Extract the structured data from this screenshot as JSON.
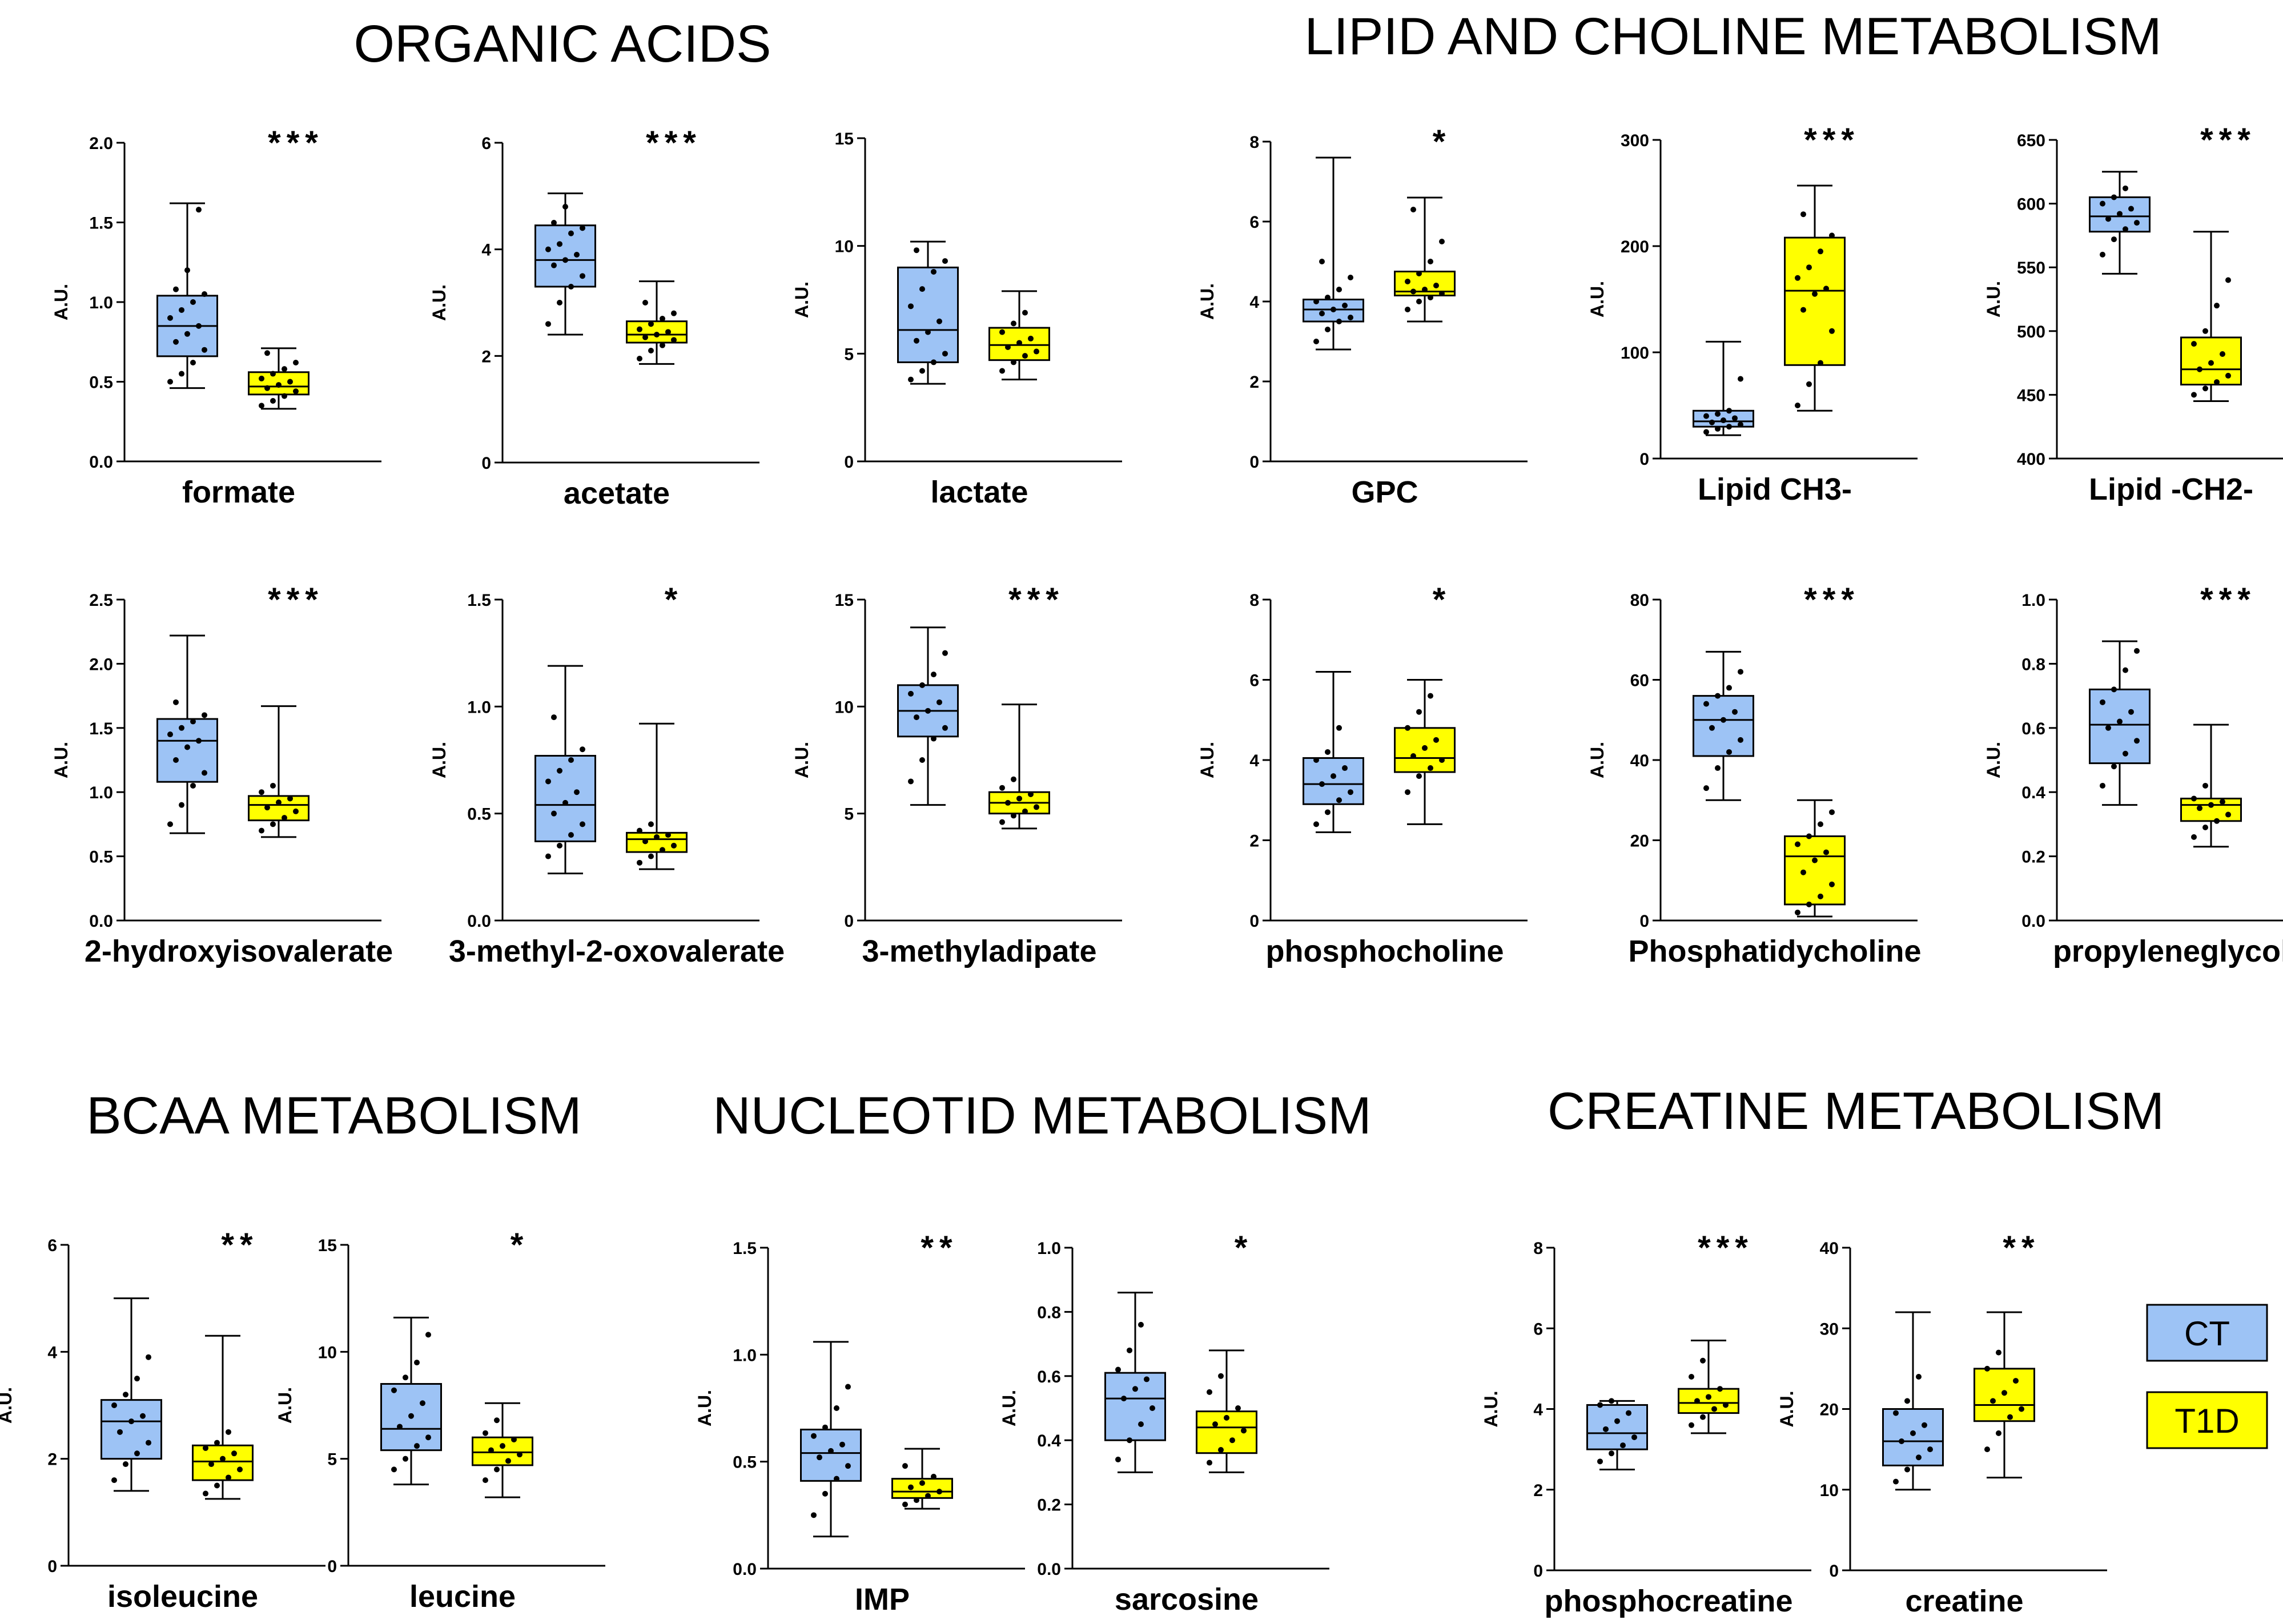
{
  "section_titles": [
    "ORGANIC ACIDS",
    "LIPID AND CHOLINE METABOLISM",
    "BCAA METABOLISM",
    "NUCLEOTID METABOLISM",
    "CREATINE METABOLISM"
  ],
  "legend": [
    {
      "label": "CT",
      "color": "#9DC3F5"
    },
    {
      "label": "T1D",
      "color": "#FFFF00"
    }
  ],
  "colors": {
    "CT": "#9DC3F5",
    "T1D": "#FFFF00",
    "stroke": "#000000"
  },
  "chart_data": [
    {
      "type": "box",
      "title": "formate",
      "ylabel": "A.U.",
      "ylim": [
        0,
        2.0
      ],
      "yticks": [
        "0.0",
        "0.5",
        "1.0",
        "1.5",
        "2.0"
      ],
      "significance": "***",
      "series": [
        {
          "name": "CT",
          "min": 0.46,
          "q1": 0.66,
          "median": 0.85,
          "q3": 1.04,
          "max": 1.62,
          "points": [
            0.5,
            0.55,
            0.62,
            0.7,
            0.75,
            0.8,
            0.85,
            0.9,
            0.95,
            1.0,
            1.05,
            1.08,
            1.2,
            1.58
          ]
        },
        {
          "name": "T1D",
          "min": 0.33,
          "q1": 0.42,
          "median": 0.47,
          "q3": 0.56,
          "max": 0.71,
          "points": [
            0.35,
            0.38,
            0.41,
            0.44,
            0.46,
            0.48,
            0.5,
            0.52,
            0.55,
            0.58,
            0.62,
            0.68
          ]
        }
      ]
    },
    {
      "type": "box",
      "title": "acetate",
      "ylabel": "A.U.",
      "ylim": [
        0,
        6
      ],
      "yticks": [
        "0",
        "2",
        "4",
        "6"
      ],
      "significance": "***",
      "series": [
        {
          "name": "CT",
          "min": 2.4,
          "q1": 3.3,
          "median": 3.8,
          "q3": 4.45,
          "max": 5.05,
          "points": [
            2.6,
            3.0,
            3.3,
            3.5,
            3.7,
            3.8,
            3.9,
            4.0,
            4.1,
            4.3,
            4.4,
            4.5,
            4.8
          ]
        },
        {
          "name": "T1D",
          "min": 1.85,
          "q1": 2.25,
          "median": 2.4,
          "q3": 2.65,
          "max": 3.4,
          "points": [
            1.95,
            2.1,
            2.2,
            2.3,
            2.35,
            2.4,
            2.45,
            2.5,
            2.6,
            2.7,
            2.8,
            3.0
          ]
        }
      ]
    },
    {
      "type": "box",
      "title": "lactate",
      "ylabel": "A.U.",
      "ylim": [
        0,
        15
      ],
      "yticks": [
        "0",
        "5",
        "10",
        "15"
      ],
      "significance": "",
      "series": [
        {
          "name": "CT",
          "min": 3.6,
          "q1": 4.6,
          "median": 6.1,
          "q3": 9.0,
          "max": 10.2,
          "points": [
            3.8,
            4.2,
            4.6,
            5.0,
            5.6,
            6.0,
            6.5,
            7.2,
            8.0,
            8.8,
            9.3,
            9.8
          ]
        },
        {
          "name": "T1D",
          "min": 3.8,
          "q1": 4.7,
          "median": 5.4,
          "q3": 6.2,
          "max": 7.9,
          "points": [
            4.2,
            4.6,
            4.9,
            5.1,
            5.3,
            5.5,
            5.7,
            6.0,
            6.4,
            6.9
          ]
        }
      ]
    },
    {
      "type": "box",
      "title": "GPC",
      "ylabel": "A.U.",
      "ylim": [
        0,
        8
      ],
      "yticks": [
        "0",
        "2",
        "4",
        "6",
        "8"
      ],
      "significance": "*",
      "series": [
        {
          "name": "CT",
          "min": 2.8,
          "q1": 3.5,
          "median": 3.8,
          "q3": 4.05,
          "max": 7.6,
          "points": [
            3.0,
            3.3,
            3.5,
            3.6,
            3.7,
            3.8,
            3.9,
            4.0,
            4.1,
            4.3,
            4.6,
            5.0
          ]
        },
        {
          "name": "T1D",
          "min": 3.5,
          "q1": 4.15,
          "median": 4.25,
          "q3": 4.75,
          "max": 6.6,
          "points": [
            3.8,
            4.0,
            4.1,
            4.2,
            4.25,
            4.3,
            4.4,
            4.5,
            4.7,
            5.0,
            5.5,
            6.3
          ]
        }
      ]
    },
    {
      "type": "box",
      "title": "Lipid CH3-",
      "ylabel": "A.U.",
      "ylim": [
        0,
        300
      ],
      "yticks": [
        "0",
        "100",
        "200",
        "300"
      ],
      "significance": "***",
      "series": [
        {
          "name": "CT",
          "min": 22,
          "q1": 30,
          "median": 35,
          "q3": 45,
          "max": 110,
          "points": [
            25,
            28,
            30,
            32,
            34,
            36,
            38,
            40,
            42,
            45,
            75
          ]
        },
        {
          "name": "T1D",
          "min": 45,
          "q1": 88,
          "median": 158,
          "q3": 208,
          "max": 257,
          "points": [
            50,
            70,
            90,
            120,
            140,
            155,
            160,
            170,
            180,
            195,
            210,
            230
          ]
        }
      ]
    },
    {
      "type": "box",
      "title": "Lipid -CH2-",
      "ylabel": "A.U.",
      "ylim": [
        400,
        650
      ],
      "yticks": [
        "400",
        "450",
        "500",
        "550",
        "600",
        "650"
      ],
      "significance": "***",
      "series": [
        {
          "name": "CT",
          "min": 545,
          "q1": 578,
          "median": 590,
          "q3": 605,
          "max": 625,
          "points": [
            560,
            572,
            580,
            585,
            588,
            592,
            596,
            600,
            605,
            612
          ]
        },
        {
          "name": "T1D",
          "min": 445,
          "q1": 458,
          "median": 470,
          "q3": 495,
          "max": 578,
          "points": [
            450,
            455,
            460,
            465,
            470,
            475,
            482,
            490,
            500,
            520,
            540
          ]
        }
      ]
    },
    {
      "type": "box",
      "title": "2-hydroxyisovalerate",
      "ylabel": "A.U.",
      "ylim": [
        0,
        2.5
      ],
      "yticks": [
        "0.0",
        "0.5",
        "1.0",
        "1.5",
        "2.0",
        "2.5"
      ],
      "significance": "***",
      "series": [
        {
          "name": "CT",
          "min": 0.68,
          "q1": 1.08,
          "median": 1.4,
          "q3": 1.57,
          "max": 2.22,
          "points": [
            0.75,
            0.9,
            1.05,
            1.15,
            1.25,
            1.35,
            1.4,
            1.45,
            1.5,
            1.55,
            1.6,
            1.7
          ]
        },
        {
          "name": "T1D",
          "min": 0.65,
          "q1": 0.78,
          "median": 0.9,
          "q3": 0.97,
          "max": 1.67,
          "points": [
            0.7,
            0.75,
            0.8,
            0.85,
            0.88,
            0.92,
            0.95,
            1.0,
            1.05
          ]
        }
      ]
    },
    {
      "type": "box",
      "title": "3-methyl-2-oxovalerate",
      "ylabel": "A.U.",
      "ylim": [
        0,
        1.5
      ],
      "yticks": [
        "0.0",
        "0.5",
        "1.0",
        "1.5"
      ],
      "significance": "*",
      "series": [
        {
          "name": "CT",
          "min": 0.22,
          "q1": 0.37,
          "median": 0.54,
          "q3": 0.77,
          "max": 1.19,
          "points": [
            0.3,
            0.35,
            0.4,
            0.45,
            0.5,
            0.55,
            0.6,
            0.65,
            0.7,
            0.75,
            0.8,
            0.95
          ]
        },
        {
          "name": "T1D",
          "min": 0.24,
          "q1": 0.32,
          "median": 0.38,
          "q3": 0.41,
          "max": 0.92,
          "points": [
            0.27,
            0.3,
            0.33,
            0.35,
            0.37,
            0.39,
            0.4,
            0.42,
            0.45
          ]
        }
      ]
    },
    {
      "type": "box",
      "title": "3-methyladipate",
      "ylabel": "A.U.",
      "ylim": [
        0,
        15
      ],
      "yticks": [
        "0",
        "5",
        "10",
        "15"
      ],
      "significance": "***",
      "series": [
        {
          "name": "CT",
          "min": 5.4,
          "q1": 8.6,
          "median": 9.8,
          "q3": 11.0,
          "max": 13.7,
          "points": [
            6.5,
            7.5,
            8.5,
            9.0,
            9.5,
            9.8,
            10.2,
            10.6,
            11.0,
            11.5,
            12.5
          ]
        },
        {
          "name": "T1D",
          "min": 4.3,
          "q1": 5.0,
          "median": 5.5,
          "q3": 6.0,
          "max": 10.1,
          "points": [
            4.6,
            4.9,
            5.1,
            5.3,
            5.5,
            5.7,
            5.9,
            6.2,
            6.6
          ]
        }
      ]
    },
    {
      "type": "box",
      "title": "phosphocholine",
      "ylabel": "A.U.",
      "ylim": [
        0,
        8
      ],
      "yticks": [
        "0",
        "2",
        "4",
        "6",
        "8"
      ],
      "significance": "*",
      "series": [
        {
          "name": "CT",
          "min": 2.2,
          "q1": 2.9,
          "median": 3.4,
          "q3": 4.05,
          "max": 6.2,
          "points": [
            2.4,
            2.7,
            3.0,
            3.2,
            3.4,
            3.6,
            3.8,
            4.0,
            4.2,
            4.8
          ]
        },
        {
          "name": "T1D",
          "min": 2.4,
          "q1": 3.7,
          "median": 4.05,
          "q3": 4.8,
          "max": 6.0,
          "points": [
            3.2,
            3.6,
            3.8,
            4.0,
            4.1,
            4.3,
            4.5,
            4.8,
            5.2,
            5.6
          ]
        }
      ]
    },
    {
      "type": "box",
      "title": "Phosphatidycholine",
      "ylabel": "A.U.",
      "ylim": [
        0,
        80
      ],
      "yticks": [
        "0",
        "20",
        "40",
        "60",
        "80"
      ],
      "significance": "***",
      "series": [
        {
          "name": "CT",
          "min": 30,
          "q1": 41,
          "median": 50,
          "q3": 56,
          "max": 67,
          "points": [
            33,
            38,
            42,
            45,
            48,
            50,
            52,
            54,
            56,
            58,
            62
          ]
        },
        {
          "name": "T1D",
          "min": 1,
          "q1": 4,
          "median": 16,
          "q3": 21,
          "max": 30,
          "points": [
            2,
            4,
            6,
            9,
            12,
            15,
            17,
            19,
            21,
            24,
            27
          ]
        }
      ]
    },
    {
      "type": "box",
      "title": "propyleneglycol",
      "ylabel": "A.U.",
      "ylim": [
        0,
        1.0
      ],
      "yticks": [
        "0.0",
        "0.2",
        "0.4",
        "0.6",
        "0.8",
        "1.0"
      ],
      "significance": "***",
      "series": [
        {
          "name": "CT",
          "min": 0.36,
          "q1": 0.49,
          "median": 0.61,
          "q3": 0.72,
          "max": 0.87,
          "points": [
            0.42,
            0.48,
            0.52,
            0.56,
            0.6,
            0.62,
            0.65,
            0.68,
            0.72,
            0.78,
            0.84
          ]
        },
        {
          "name": "T1D",
          "min": 0.23,
          "q1": 0.31,
          "median": 0.36,
          "q3": 0.38,
          "max": 0.61,
          "points": [
            0.26,
            0.29,
            0.31,
            0.33,
            0.35,
            0.36,
            0.37,
            0.38,
            0.42
          ]
        }
      ]
    },
    {
      "type": "box",
      "title": "isoleucine",
      "ylabel": "A.U.",
      "ylim": [
        0,
        6
      ],
      "yticks": [
        "0",
        "2",
        "4",
        "6"
      ],
      "significance": "**",
      "series": [
        {
          "name": "CT",
          "min": 1.4,
          "q1": 2.0,
          "median": 2.7,
          "q3": 3.1,
          "max": 5.0,
          "points": [
            1.6,
            1.9,
            2.1,
            2.3,
            2.5,
            2.7,
            2.8,
            3.0,
            3.2,
            3.5,
            3.9
          ]
        },
        {
          "name": "T1D",
          "min": 1.25,
          "q1": 1.6,
          "median": 1.95,
          "q3": 2.25,
          "max": 4.3,
          "points": [
            1.35,
            1.5,
            1.65,
            1.8,
            1.9,
            2.0,
            2.1,
            2.2,
            2.3,
            2.5
          ]
        }
      ]
    },
    {
      "type": "box",
      "title": "leucine",
      "ylabel": "A.U.",
      "ylim": [
        0,
        15
      ],
      "yticks": [
        "0",
        "5",
        "10",
        "15"
      ],
      "significance": "*",
      "series": [
        {
          "name": "CT",
          "min": 3.8,
          "q1": 5.4,
          "median": 6.4,
          "q3": 8.5,
          "max": 11.6,
          "points": [
            4.5,
            5.0,
            5.6,
            6.0,
            6.5,
            7.0,
            7.6,
            8.2,
            8.8,
            9.5,
            10.8
          ]
        },
        {
          "name": "T1D",
          "min": 3.2,
          "q1": 4.7,
          "median": 5.3,
          "q3": 6.0,
          "max": 7.6,
          "points": [
            4.0,
            4.5,
            4.9,
            5.2,
            5.4,
            5.6,
            5.9,
            6.2,
            6.8
          ]
        }
      ]
    },
    {
      "type": "box",
      "title": "IMP",
      "ylabel": "A.U.",
      "ylim": [
        0,
        1.5
      ],
      "yticks": [
        "0.0",
        "0.5",
        "1.0",
        "1.5"
      ],
      "significance": "**",
      "series": [
        {
          "name": "CT",
          "min": 0.15,
          "q1": 0.41,
          "median": 0.54,
          "q3": 0.65,
          "max": 1.06,
          "points": [
            0.25,
            0.35,
            0.42,
            0.48,
            0.52,
            0.55,
            0.58,
            0.62,
            0.66,
            0.75,
            0.85
          ]
        },
        {
          "name": "T1D",
          "min": 0.28,
          "q1": 0.33,
          "median": 0.36,
          "q3": 0.42,
          "max": 0.56,
          "points": [
            0.3,
            0.32,
            0.34,
            0.36,
            0.38,
            0.4,
            0.43,
            0.48
          ]
        }
      ]
    },
    {
      "type": "box",
      "title": "sarcosine",
      "ylabel": "A.U.",
      "ylim": [
        0,
        1.0
      ],
      "yticks": [
        "0.0",
        "0.2",
        "0.4",
        "0.6",
        "0.8",
        "1.0"
      ],
      "significance": "*",
      "series": [
        {
          "name": "CT",
          "min": 0.3,
          "q1": 0.4,
          "median": 0.53,
          "q3": 0.61,
          "max": 0.86,
          "points": [
            0.34,
            0.4,
            0.45,
            0.5,
            0.53,
            0.56,
            0.59,
            0.62,
            0.68,
            0.76
          ]
        },
        {
          "name": "T1D",
          "min": 0.3,
          "q1": 0.36,
          "median": 0.44,
          "q3": 0.49,
          "max": 0.68,
          "points": [
            0.33,
            0.37,
            0.4,
            0.43,
            0.45,
            0.47,
            0.5,
            0.55,
            0.6
          ]
        }
      ]
    },
    {
      "type": "box",
      "title": "phosphocreatine",
      "ylabel": "A.U.",
      "ylim": [
        0,
        8
      ],
      "yticks": [
        "0",
        "2",
        "4",
        "6",
        "8"
      ],
      "significance": "***",
      "series": [
        {
          "name": "CT",
          "min": 2.5,
          "q1": 3.0,
          "median": 3.4,
          "q3": 4.1,
          "max": 4.2,
          "points": [
            2.7,
            2.9,
            3.1,
            3.3,
            3.5,
            3.7,
            3.9,
            4.1,
            4.2
          ]
        },
        {
          "name": "T1D",
          "min": 3.4,
          "q1": 3.9,
          "median": 4.15,
          "q3": 4.5,
          "max": 5.7,
          "points": [
            3.6,
            3.8,
            4.0,
            4.1,
            4.2,
            4.3,
            4.5,
            4.8,
            5.2
          ]
        }
      ]
    },
    {
      "type": "box",
      "title": "creatine",
      "ylabel": "A.U.",
      "ylim": [
        0,
        40
      ],
      "yticks": [
        "0",
        "10",
        "20",
        "30",
        "40"
      ],
      "significance": "**",
      "series": [
        {
          "name": "CT",
          "min": 10,
          "q1": 13,
          "median": 16,
          "q3": 20,
          "max": 32,
          "points": [
            11,
            12.5,
            14,
            15,
            16,
            17,
            18,
            19.5,
            21,
            24
          ]
        },
        {
          "name": "T1D",
          "min": 11.5,
          "q1": 18.5,
          "median": 20.5,
          "q3": 25,
          "max": 32,
          "points": [
            15,
            17,
            19,
            20,
            21,
            22,
            23.5,
            25,
            27
          ]
        }
      ]
    }
  ]
}
